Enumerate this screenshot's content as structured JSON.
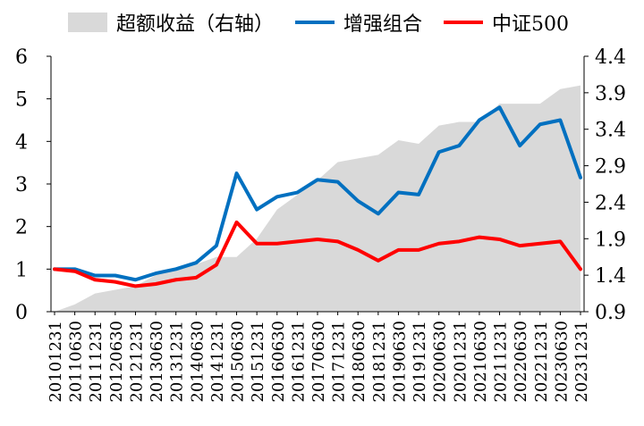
{
  "chart_data": {
    "type": "line",
    "legend_position": "top",
    "grid": false,
    "x_tick_labels": [
      "20101231",
      "20110630",
      "20111231",
      "20120630",
      "20121231",
      "20130630",
      "20131231",
      "20140630",
      "20141231",
      "20150630",
      "20151231",
      "20160630",
      "20161231",
      "20170630",
      "20171231",
      "20180630",
      "20181231",
      "20190630",
      "20191231",
      "20200630",
      "20201231",
      "20210630",
      "20211231",
      "20220630",
      "20221231",
      "20230630",
      "20231231"
    ],
    "y_left": {
      "ticks": [
        "0",
        "1",
        "2",
        "3",
        "4",
        "5",
        "6"
      ],
      "range": [
        0,
        6
      ]
    },
    "y_right": {
      "ticks": [
        "0.9",
        "1.4",
        "1.9",
        "2.4",
        "2.9",
        "3.4",
        "3.9",
        "4.4"
      ],
      "range": [
        0.9,
        4.4
      ]
    },
    "series": [
      {
        "name": "超额收益（右轴）",
        "type": "area",
        "axis": "right",
        "color": "#d9d9d9",
        "x": [
          "20101231",
          "20110630",
          "20111231",
          "20120630",
          "20121231",
          "20130630",
          "20131231",
          "20140630",
          "20141231",
          "20150630",
          "20151231",
          "20160630",
          "20161231",
          "20170630",
          "20171231",
          "20180630",
          "20181231",
          "20190630",
          "20191231",
          "20200630",
          "20201231",
          "20210630",
          "20211231",
          "20220630",
          "20221231",
          "20230630",
          "20231231"
        ],
        "values": [
          0.9,
          1.0,
          1.15,
          1.2,
          1.25,
          1.4,
          1.5,
          1.55,
          1.65,
          1.65,
          1.9,
          2.3,
          2.5,
          2.7,
          2.95,
          3.0,
          3.05,
          3.25,
          3.2,
          3.45,
          3.5,
          3.5,
          3.75,
          3.75,
          3.75,
          3.95,
          4.0
        ]
      },
      {
        "name": "增强组合",
        "type": "line",
        "axis": "left",
        "color": "#0070c0",
        "x": [
          "20101231",
          "20110630",
          "20111231",
          "20120630",
          "20121231",
          "20130630",
          "20131231",
          "20140630",
          "20141231",
          "20150630",
          "20151231",
          "20160630",
          "20161231",
          "20170630",
          "20171231",
          "20180630",
          "20181231",
          "20190630",
          "20191231",
          "20200630",
          "20201231",
          "20210630",
          "20211231",
          "20220630",
          "20221231",
          "20230630",
          "20231231"
        ],
        "values": [
          1.0,
          1.0,
          0.85,
          0.85,
          0.75,
          0.9,
          1.0,
          1.15,
          1.55,
          3.25,
          2.4,
          2.7,
          2.8,
          3.1,
          3.05,
          2.6,
          2.3,
          2.8,
          2.75,
          3.75,
          3.9,
          4.5,
          4.8,
          3.9,
          4.4,
          4.5,
          3.15
        ]
      },
      {
        "name": "中证500",
        "type": "line",
        "axis": "left",
        "color": "#ff0000",
        "x": [
          "20101231",
          "20110630",
          "20111231",
          "20120630",
          "20121231",
          "20130630",
          "20131231",
          "20140630",
          "20141231",
          "20150630",
          "20151231",
          "20160630",
          "20161231",
          "20170630",
          "20171231",
          "20180630",
          "20181231",
          "20190630",
          "20191231",
          "20200630",
          "20201231",
          "20210630",
          "20211231",
          "20220630",
          "20221231",
          "20230630",
          "20231231"
        ],
        "values": [
          1.0,
          0.95,
          0.75,
          0.7,
          0.6,
          0.65,
          0.75,
          0.8,
          1.1,
          2.1,
          1.6,
          1.6,
          1.65,
          1.7,
          1.65,
          1.45,
          1.2,
          1.45,
          1.45,
          1.6,
          1.65,
          1.75,
          1.7,
          1.55,
          1.6,
          1.65,
          1.0
        ]
      }
    ]
  }
}
